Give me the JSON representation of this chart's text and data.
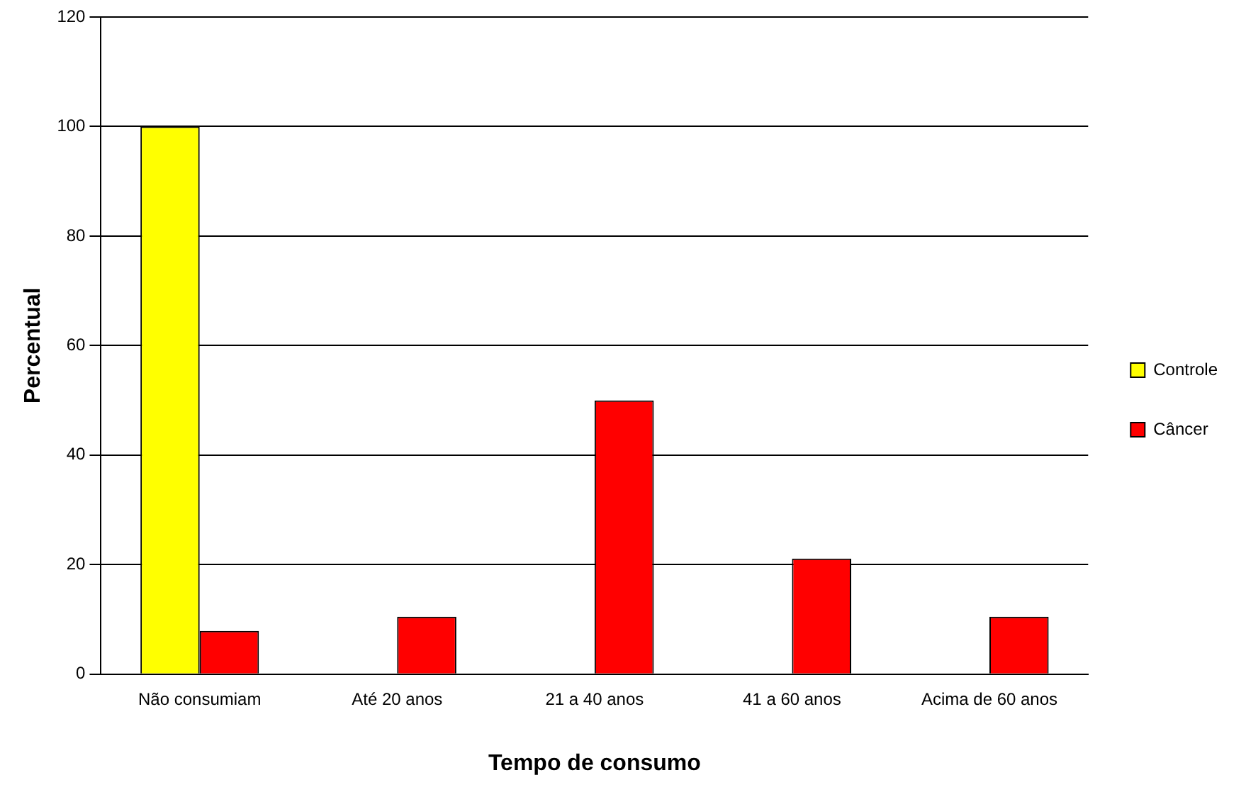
{
  "chart_data": {
    "type": "bar",
    "xlabel": "Tempo de consumo",
    "ylabel": "Percentual",
    "categories": [
      "Não consumiam",
      "Até 20 anos",
      "21 a 40 anos",
      "41 a 60 anos",
      "Acima de 60 anos"
    ],
    "series": [
      {
        "name": "Controle",
        "color": "#ffff00",
        "values": [
          100,
          0,
          0,
          0,
          0
        ]
      },
      {
        "name": "Câncer",
        "color": "#ff0000",
        "values": [
          7.9,
          10.5,
          50,
          21.1,
          10.5
        ]
      }
    ],
    "ylim": [
      0,
      120
    ],
    "yticks": [
      0,
      20,
      40,
      60,
      80,
      100,
      120
    ],
    "grid": "y",
    "legend": "right"
  }
}
